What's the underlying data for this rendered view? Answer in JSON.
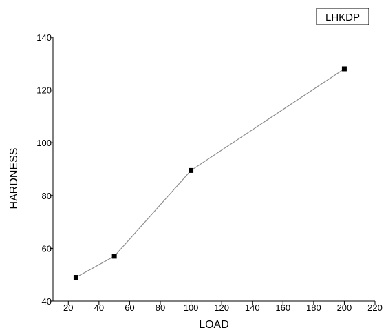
{
  "chart_data": {
    "type": "line",
    "title": "",
    "xlabel": "LOAD",
    "ylabel": "HARDNESS",
    "xlim": [
      10,
      220
    ],
    "ylim": [
      40,
      140
    ],
    "x_ticks": [
      20,
      40,
      60,
      80,
      100,
      120,
      140,
      160,
      180,
      200,
      220
    ],
    "y_ticks": [
      40,
      60,
      80,
      100,
      120,
      140
    ],
    "grid": false,
    "legend_position": "top-right",
    "series": [
      {
        "name": "LHKDP",
        "color": "#000000",
        "line_color": "#8c8c8c",
        "marker": "square",
        "points": [
          {
            "x": 25,
            "y": 49
          },
          {
            "x": 50,
            "y": 57
          },
          {
            "x": 100,
            "y": 89.5
          },
          {
            "x": 200,
            "y": 128
          }
        ]
      }
    ]
  }
}
